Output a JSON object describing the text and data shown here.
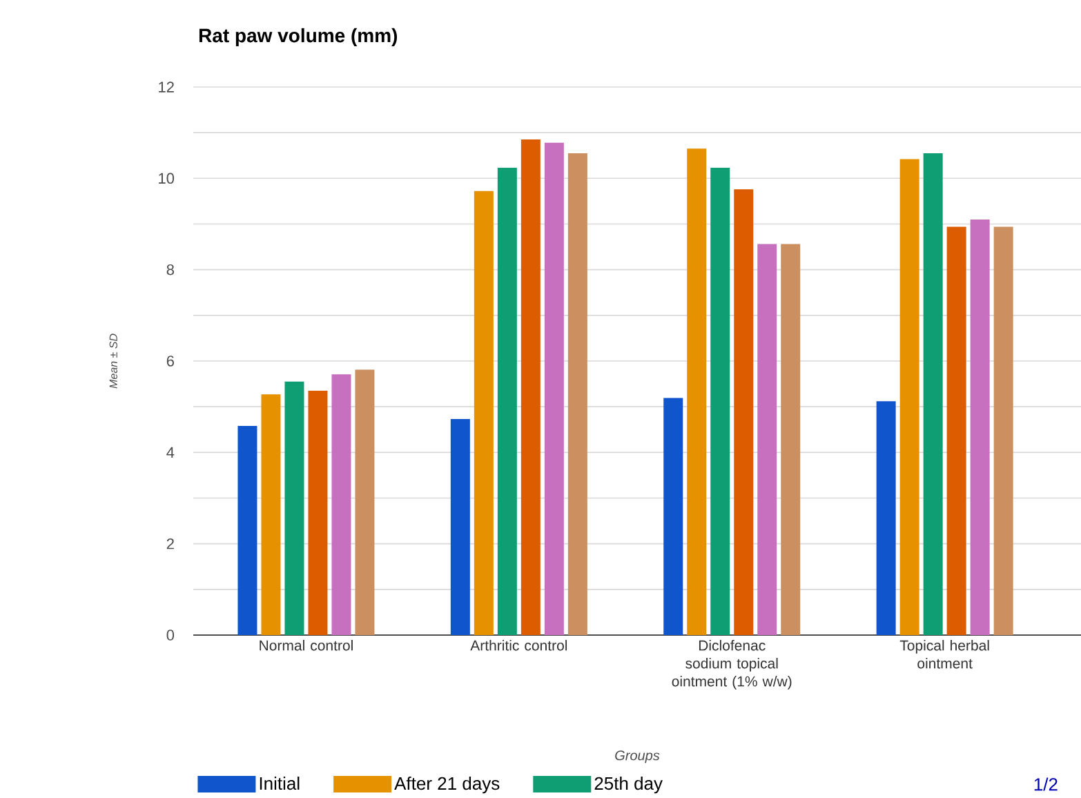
{
  "chart_data": {
    "type": "bar",
    "title": "Rat paw volume (mm)",
    "xlabel": "Groups",
    "ylabel": "Mean ± SD",
    "categories": [
      "Normal control",
      "Arthritic control",
      "Diclofenac sodium topical ointment (1% w/w)",
      "Topical herbal ointment"
    ],
    "series": [
      {
        "name": "Initial",
        "color": "#1155cc",
        "values": [
          4.58,
          4.73,
          5.19,
          5.12
        ]
      },
      {
        "name": "After 21 days",
        "color": "#e69100",
        "values": [
          5.27,
          9.72,
          10.65,
          10.42
        ]
      },
      {
        "name": "25th day",
        "color": "#0f9d74",
        "values": [
          5.55,
          10.23,
          10.23,
          10.55
        ]
      },
      {
        "color": "#dd5c00",
        "values": [
          5.35,
          10.85,
          9.76,
          8.94
        ]
      },
      {
        "color": "#c870c0",
        "values": [
          5.71,
          10.78,
          8.56,
          9.1
        ]
      },
      {
        "color": "#cc9060",
        "values": [
          5.81,
          10.55,
          8.56,
          8.94
        ]
      }
    ],
    "ylim": [
      0,
      12
    ],
    "yticks": [
      0,
      {
        "value": 1,
        "label": null
      },
      2,
      {
        "value": 3,
        "label": null
      },
      4,
      {
        "value": 5,
        "label": null
      },
      6,
      {
        "value": 7,
        "label": null
      },
      8,
      {
        "value": 9,
        "label": null
      },
      10,
      {
        "value": 11,
        "label": null
      },
      12
    ],
    "grid": "y",
    "legend": "bottom",
    "annotations": [
      "1/2"
    ]
  }
}
